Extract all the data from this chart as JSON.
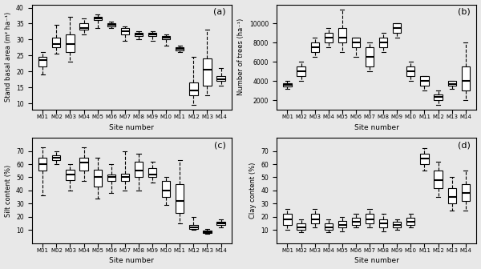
{
  "sites": [
    "M01",
    "M02",
    "M03",
    "M04",
    "M05",
    "M06",
    "M07",
    "M08",
    "M09",
    "M10",
    "M11",
    "M12",
    "M13",
    "M14"
  ],
  "panel_a": {
    "ylabel": "Stand basal area (m² ha⁻¹)",
    "xlabel": "Site number",
    "label": "(a)",
    "ylim": [
      8,
      41
    ],
    "yticks": [
      10,
      15,
      20,
      25,
      30,
      35,
      40
    ],
    "boxes": [
      {
        "med": 23.5,
        "q1": 21.5,
        "q3": 24.5,
        "whislo": 19.0,
        "whishi": 26.0
      },
      {
        "med": 28.5,
        "q1": 27.5,
        "q3": 30.5,
        "whislo": 25.5,
        "whishi": 34.5
      },
      {
        "med": 28.5,
        "q1": 26.0,
        "q3": 31.5,
        "whislo": 23.0,
        "whishi": 37.0
      },
      {
        "med": 33.5,
        "q1": 33.0,
        "q3": 35.0,
        "whislo": 31.5,
        "whishi": 36.5
      },
      {
        "med": 36.5,
        "q1": 36.0,
        "q3": 37.0,
        "whislo": 33.5,
        "whishi": 38.0
      },
      {
        "med": 34.5,
        "q1": 34.0,
        "q3": 35.0,
        "whislo": 33.5,
        "whishi": 35.5
      },
      {
        "med": 32.5,
        "q1": 31.5,
        "q3": 33.5,
        "whislo": 29.5,
        "whishi": 34.0
      },
      {
        "med": 31.5,
        "q1": 31.0,
        "q3": 32.0,
        "whislo": 30.0,
        "whishi": 32.5
      },
      {
        "med": 31.5,
        "q1": 31.0,
        "q3": 32.0,
        "whislo": 29.5,
        "whishi": 32.5
      },
      {
        "med": 30.5,
        "q1": 30.0,
        "q3": 31.0,
        "whislo": 28.0,
        "whishi": 31.5
      },
      {
        "med": 27.0,
        "q1": 26.5,
        "q3": 27.5,
        "whislo": 26.0,
        "whishi": 28.0
      },
      {
        "med": 14.0,
        "q1": 12.5,
        "q3": 16.5,
        "whislo": 9.5,
        "whishi": 24.5
      },
      {
        "med": 20.5,
        "q1": 15.5,
        "q3": 24.0,
        "whislo": 12.5,
        "whishi": 33.0
      },
      {
        "med": 17.5,
        "q1": 17.0,
        "q3": 18.5,
        "whislo": 15.5,
        "whishi": 21.0
      }
    ]
  },
  "panel_b": {
    "ylabel": "Number of trees (ha⁻¹)",
    "xlabel": "Site number",
    "label": "(b)",
    "ylim": [
      1000,
      12000
    ],
    "yticks": [
      2000,
      4000,
      6000,
      8000,
      10000
    ],
    "boxes": [
      {
        "med": 3600,
        "q1": 3400,
        "q3": 3800,
        "whislo": 3200,
        "whishi": 4000
      },
      {
        "med": 5000,
        "q1": 4500,
        "q3": 5500,
        "whislo": 4000,
        "whishi": 6000
      },
      {
        "med": 7500,
        "q1": 7000,
        "q3": 8000,
        "whislo": 6500,
        "whishi": 8500
      },
      {
        "med": 8500,
        "q1": 8000,
        "q3": 9000,
        "whislo": 7500,
        "whishi": 9500
      },
      {
        "med": 8500,
        "q1": 8000,
        "q3": 9500,
        "whislo": 7000,
        "whishi": 11500
      },
      {
        "med": 8000,
        "q1": 7500,
        "q3": 8500,
        "whislo": 6500,
        "whishi": 8500
      },
      {
        "med": 6500,
        "q1": 5500,
        "q3": 7500,
        "whislo": 5000,
        "whishi": 8000
      },
      {
        "med": 8000,
        "q1": 7500,
        "q3": 8500,
        "whislo": 7000,
        "whishi": 9000
      },
      {
        "med": 9500,
        "q1": 9000,
        "q3": 10000,
        "whislo": 8500,
        "whishi": 10000
      },
      {
        "med": 5000,
        "q1": 4500,
        "q3": 5500,
        "whislo": 4000,
        "whishi": 6000
      },
      {
        "med": 4000,
        "q1": 3500,
        "q3": 4500,
        "whislo": 3000,
        "whishi": 4500
      },
      {
        "med": 2300,
        "q1": 2000,
        "q3": 2600,
        "whislo": 1500,
        "whishi": 3000
      },
      {
        "med": 3700,
        "q1": 3500,
        "q3": 4000,
        "whislo": 3200,
        "whishi": 4000
      },
      {
        "med": 4000,
        "q1": 3000,
        "q3": 5500,
        "whislo": 2000,
        "whishi": 8000
      }
    ]
  },
  "panel_c": {
    "ylabel": "Silt content (%)",
    "xlabel": "Site number",
    "label": "(c)",
    "ylim": [
      0,
      80
    ],
    "yticks": [
      10,
      20,
      30,
      40,
      50,
      60,
      70
    ],
    "boxes": [
      {
        "med": 60.0,
        "q1": 55.0,
        "q3": 65.0,
        "whislo": 36.0,
        "whishi": 73.0
      },
      {
        "med": 65.0,
        "q1": 63.0,
        "q3": 67.0,
        "whislo": 60.0,
        "whishi": 70.0
      },
      {
        "med": 52.0,
        "q1": 48.0,
        "q3": 56.0,
        "whislo": 40.0,
        "whishi": 60.0
      },
      {
        "med": 61.0,
        "q1": 55.0,
        "q3": 65.0,
        "whislo": 47.0,
        "whishi": 73.0
      },
      {
        "med": 50.0,
        "q1": 43.0,
        "q3": 56.0,
        "whislo": 34.0,
        "whishi": 65.0
      },
      {
        "med": 50.0,
        "q1": 47.0,
        "q3": 52.0,
        "whislo": 38.0,
        "whishi": 60.0
      },
      {
        "med": 50.0,
        "q1": 47.0,
        "q3": 53.0,
        "whislo": 40.0,
        "whishi": 70.0
      },
      {
        "med": 55.0,
        "q1": 50.0,
        "q3": 62.0,
        "whislo": 40.0,
        "whishi": 68.0
      },
      {
        "med": 52.0,
        "q1": 50.0,
        "q3": 57.0,
        "whislo": 46.0,
        "whishi": 62.0
      },
      {
        "med": 40.0,
        "q1": 35.0,
        "q3": 47.0,
        "whislo": 29.0,
        "whishi": 50.0
      },
      {
        "med": 32.0,
        "q1": 23.0,
        "q3": 45.0,
        "whislo": 15.0,
        "whishi": 63.0
      },
      {
        "med": 12.0,
        "q1": 11.0,
        "q3": 14.0,
        "whislo": 10.0,
        "whishi": 20.0
      },
      {
        "med": 8.5,
        "q1": 7.5,
        "q3": 9.5,
        "whislo": 7.0,
        "whishi": 10.5
      },
      {
        "med": 15.0,
        "q1": 13.5,
        "q3": 16.5,
        "whislo": 12.0,
        "whishi": 18.0
      }
    ]
  },
  "panel_d": {
    "ylabel": "Clay content (%)",
    "xlabel": "Site number",
    "label": "(d)",
    "ylim": [
      0,
      80
    ],
    "yticks": [
      10,
      20,
      30,
      40,
      50,
      60,
      70
    ],
    "boxes": [
      {
        "med": 18.0,
        "q1": 14.0,
        "q3": 22.0,
        "whislo": 10.0,
        "whishi": 26.0
      },
      {
        "med": 12.0,
        "q1": 10.0,
        "q3": 15.0,
        "whislo": 8.0,
        "whishi": 18.0
      },
      {
        "med": 18.0,
        "q1": 15.0,
        "q3": 22.0,
        "whislo": 12.0,
        "whishi": 26.0
      },
      {
        "med": 12.0,
        "q1": 10.0,
        "q3": 15.0,
        "whislo": 8.0,
        "whishi": 18.0
      },
      {
        "med": 14.0,
        "q1": 12.0,
        "q3": 17.0,
        "whislo": 9.0,
        "whishi": 20.0
      },
      {
        "med": 16.0,
        "q1": 14.0,
        "q3": 19.0,
        "whislo": 12.0,
        "whishi": 22.0
      },
      {
        "med": 18.0,
        "q1": 15.0,
        "q3": 22.0,
        "whislo": 12.0,
        "whishi": 26.0
      },
      {
        "med": 15.0,
        "q1": 12.0,
        "q3": 18.0,
        "whislo": 9.0,
        "whishi": 22.0
      },
      {
        "med": 14.0,
        "q1": 12.0,
        "q3": 16.0,
        "whislo": 10.0,
        "whishi": 18.0
      },
      {
        "med": 16.0,
        "q1": 14.0,
        "q3": 19.0,
        "whislo": 12.0,
        "whishi": 22.0
      },
      {
        "med": 64.0,
        "q1": 60.0,
        "q3": 68.0,
        "whislo": 55.0,
        "whishi": 72.0
      },
      {
        "med": 48.0,
        "q1": 42.0,
        "q3": 55.0,
        "whislo": 35.0,
        "whishi": 62.0
      },
      {
        "med": 35.0,
        "q1": 30.0,
        "q3": 42.0,
        "whislo": 25.0,
        "whishi": 50.0
      },
      {
        "med": 38.0,
        "q1": 32.0,
        "q3": 45.0,
        "whislo": 25.0,
        "whishi": 55.0
      }
    ]
  },
  "bg_color": "#e8e8e8",
  "box_facecolor": "white",
  "box_edgecolor": "black",
  "median_color": "black",
  "whisker_color": "black",
  "cap_color": "black",
  "flier_color": "black"
}
